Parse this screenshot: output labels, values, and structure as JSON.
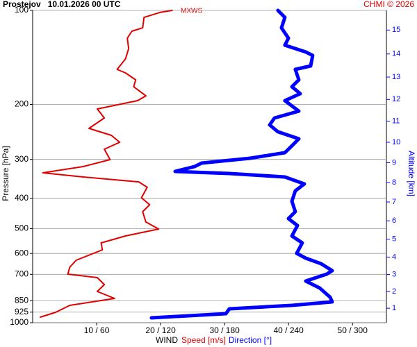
{
  "chart_data": {
    "type": "line",
    "orientation": "vertical-profile",
    "title": "Prostejov   10.01.2026 00 UTC",
    "credit": "CHMI © 2026",
    "annotation": "MXWS",
    "x_label": "WIND",
    "y_label": "Pressure [hPa]",
    "y2_label": "Altitude [km]",
    "ylog": true,
    "grid": "y",
    "ylim": [
      100,
      1000
    ],
    "yticks": [
      100,
      200,
      300,
      400,
      500,
      600,
      700,
      850,
      925,
      1000
    ],
    "xlim": [
      0,
      55.3
    ],
    "x2lim": [
      0,
      332
    ],
    "xticks": [
      {
        "value": 10,
        "label": "10 / 60"
      },
      {
        "value": 20,
        "label": "20 / 120"
      },
      {
        "value": 30,
        "label": "30 / 180"
      },
      {
        "value": 40,
        "label": "40 / 240"
      },
      {
        "value": 50,
        "label": "50 / 300"
      }
    ],
    "altitude_ticks": [
      1,
      2,
      3,
      4,
      5,
      6,
      7,
      8,
      9,
      10,
      11,
      12,
      13,
      14,
      15
    ],
    "series": [
      {
        "name": "Speed [m/s]",
        "color": "#e00000",
        "pressure": [
          100,
          101.5,
          105.3,
          113.7,
          116.6,
          122.7,
          132.5,
          143.1,
          154.5,
          158.5,
          166.8,
          175.6,
          187.7,
          194.5,
          206.8,
          221,
          238.6,
          251.2,
          264.4,
          278.3,
          300.5,
          316.2,
          331.1,
          341.5,
          354,
          368.6,
          398.1,
          419,
          441,
          476,
          501.2,
          527.6,
          555.3,
          584.4,
          631,
          664.1,
          699,
          717,
          754.7,
          794.3,
          836,
          880,
          926,
          960
        ],
        "values": [
          21.8,
          19.9,
          17.4,
          17.2,
          15.5,
          14.8,
          15,
          14.5,
          13.2,
          14.5,
          16.1,
          15.8,
          17.7,
          16.4,
          10.1,
          11.2,
          8.8,
          12.3,
          13.6,
          11.2,
          12.1,
          7.9,
          1.6,
          7.9,
          16.6,
          17.9,
          17,
          18.3,
          17.2,
          17.7,
          19.7,
          14.5,
          10.7,
          10.9,
          6.8,
          5.8,
          5.5,
          10.1,
          11.2,
          10.1,
          12.8,
          5.8,
          3.6,
          1.2
        ]
      },
      {
        "name": "Direction [°]",
        "color": "#0000ff",
        "axis": "x2",
        "pressure": [
          100,
          105.3,
          113.7,
          122.7,
          129.2,
          135.9,
          139.4,
          150.6,
          154.5,
          166.8,
          175.6,
          184.8,
          194.5,
          210.1,
          221,
          232.6,
          244.7,
          257.7,
          271.3,
          285.5,
          297.4,
          308.3,
          316.2,
          327.8,
          332.8,
          341.5,
          359.4,
          378.2,
          408.4,
          441,
          464.2,
          488.6,
          527.6,
          555.3,
          599.5,
          621.5,
          647.3,
          681.3,
          699,
          735.5,
          774.3,
          827.8,
          857.6,
          880,
          902.7,
          935.5,
          964.7
        ],
        "values": [
          230.2,
          236.7,
          233.5,
          240,
          236.7,
          256.3,
          262.8,
          260.9,
          246.5,
          249.8,
          243.3,
          251.1,
          236.7,
          249.8,
          227,
          222.4,
          230.2,
          249.8,
          243.3,
          236.7,
          204.1,
          158.5,
          152,
          133.7,
          184.6,
          236.7,
          255,
          246.5,
          243.3,
          246.5,
          240,
          248.5,
          243.3,
          253,
          247.8,
          256.3,
          270.7,
          281.1,
          275.9,
          256.3,
          269.4,
          279.1,
          281.1,
          243.3,
          184.6,
          181.3,
          111.5
        ]
      }
    ]
  }
}
